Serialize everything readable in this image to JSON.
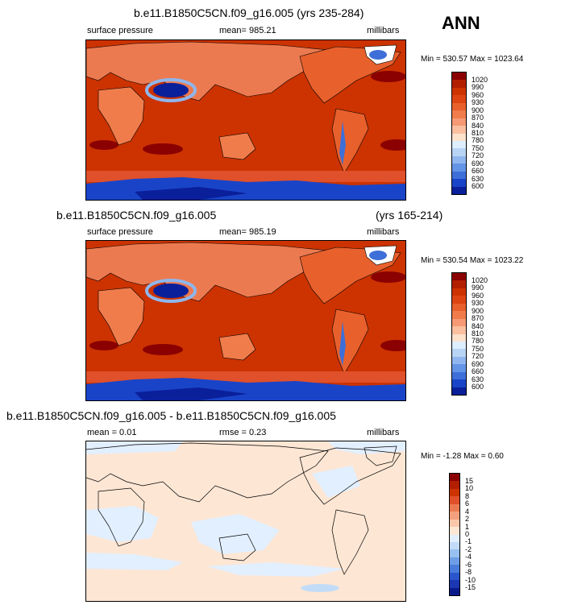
{
  "season": "ANN",
  "panels": [
    {
      "title": "b.e11.B1850C5CN.f09_g16.005 (yrs 235-284)",
      "left": "surface pressure",
      "center": "mean= 985.21",
      "right": "millibars",
      "minmax": "Min = 530.57 Max = 1023.64",
      "levels": [
        "1020",
        "990",
        "960",
        "930",
        "900",
        "870",
        "840",
        "810",
        "780",
        "750",
        "720",
        "690",
        "660",
        "630",
        "600"
      ],
      "colors": [
        "#8b0000",
        "#b21f00",
        "#cc3300",
        "#dd4411",
        "#e8602c",
        "#f07c4c",
        "#f59a74",
        "#fac0a0",
        "#fde2cc",
        "#ddeeff",
        "#b8d4f5",
        "#8fb6ee",
        "#6494e6",
        "#3e6fd9",
        "#1a44c8",
        "#0a1f9a"
      ]
    },
    {
      "title": "b.e11.B1850C5CN.f09_g16.005",
      "title_right": "(yrs 165-214)",
      "left": "surface pressure",
      "center": "mean= 985.19",
      "right": "millibars",
      "minmax": "Min = 530.54 Max = 1023.22",
      "levels": [
        "1020",
        "990",
        "960",
        "930",
        "900",
        "870",
        "840",
        "810",
        "780",
        "750",
        "720",
        "690",
        "660",
        "630",
        "600"
      ],
      "colors": [
        "#8b0000",
        "#b21f00",
        "#cc3300",
        "#dd4411",
        "#e8602c",
        "#f07c4c",
        "#f59a74",
        "#fac0a0",
        "#fde2cc",
        "#ddeeff",
        "#b8d4f5",
        "#8fb6ee",
        "#6494e6",
        "#3e6fd9",
        "#1a44c8",
        "#0a1f9a"
      ]
    },
    {
      "title": "b.e11.B1850C5CN.f09_g16.005 - b.e11.B1850C5CN.f09_g16.005",
      "left": "mean =  0.01",
      "center": "rmse =   0.23",
      "right": "millibars",
      "minmax": "Min =  -1.28 Max =   0.60",
      "levels": [
        "15",
        "10",
        "8",
        "6",
        "4",
        "2",
        "1",
        "0",
        "-1",
        "-2",
        "-4",
        "-6",
        "-8",
        "-10",
        "-15"
      ],
      "colors": [
        "#8b0000",
        "#b21f00",
        "#cc3300",
        "#e0502a",
        "#ec7a50",
        "#f5a07c",
        "#fbc7aa",
        "#fde6d4",
        "#e2efff",
        "#c2dcf8",
        "#98c0f0",
        "#6e9ee6",
        "#4a7ddb",
        "#2a55cc",
        "#1a36b0",
        "#0a1a8a"
      ]
    }
  ]
}
